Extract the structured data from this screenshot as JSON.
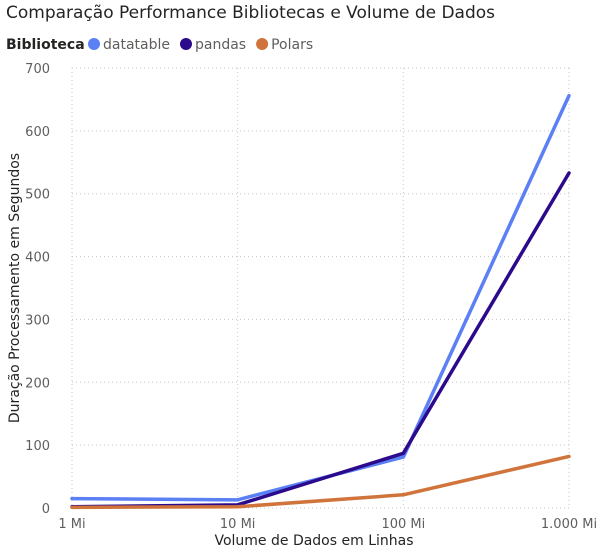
{
  "chart_data": {
    "type": "line",
    "title": "Comparação Performance Bibliotecas e Volume de Dados",
    "legend": {
      "title": "Biblioteca",
      "position": "top-left"
    },
    "categories": [
      "1 Mi",
      "10 Mi",
      "100 Mi",
      "1.000 Mi"
    ],
    "series": [
      {
        "name": "datatable",
        "color": "#5b7ff5",
        "values": [
          15,
          13,
          81,
          656
        ]
      },
      {
        "name": "pandas",
        "color": "#2c0a8c",
        "values": [
          2,
          5,
          87,
          533
        ]
      },
      {
        "name": "Polars",
        "color": "#d0743c",
        "values": [
          1,
          2,
          21,
          82
        ]
      }
    ],
    "xlabel": "Volume de Dados em Linhas",
    "ylabel": "Duração Processamento em Segundos",
    "ylim": [
      0,
      700
    ],
    "yticks": [
      "0",
      "100",
      "200",
      "300",
      "400",
      "500",
      "600",
      "700"
    ],
    "grid": true
  }
}
